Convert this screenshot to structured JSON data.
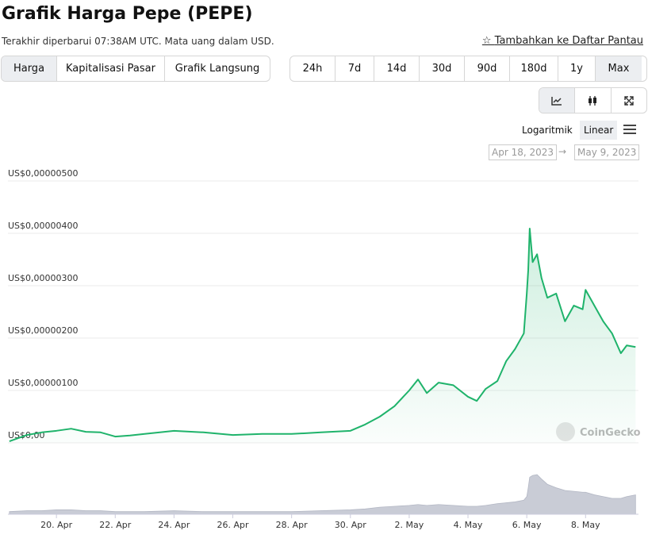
{
  "header": {
    "title": "Grafik Harga Pepe (PEPE)",
    "updated": "Terakhir diperbarui 07:38AM UTC. Mata uang dalam USD.",
    "watchlist": "Tambahkan ke Daftar Pantau"
  },
  "tabs": [
    "Harga",
    "Kapitalisasi Pasar",
    "Grafik Langsung"
  ],
  "ranges": [
    "24h",
    "7d",
    "14d",
    "30d",
    "90d",
    "180d",
    "1y",
    "Max"
  ],
  "scale_options": [
    "Logaritmik",
    "Linear"
  ],
  "date_range": [
    "Apr 18, 2023",
    "May 9, 2023"
  ],
  "chart_data": {
    "type": "line",
    "fill": true,
    "color": "#1fb36b",
    "grid": true,
    "watermark": "CoinGecko",
    "x": [
      0.4,
      1,
      1.5,
      2,
      2.5,
      3,
      3.5,
      4,
      4.5,
      5,
      6,
      7,
      8,
      9,
      10,
      11,
      12,
      12.5,
      13,
      13.5,
      14,
      14.3,
      14.6,
      15,
      15.5,
      16,
      16.3,
      16.6,
      17,
      17.3,
      17.6,
      17.9,
      18,
      18.05,
      18.1,
      18.2,
      18.35,
      18.5,
      18.7,
      19,
      19.3,
      19.6,
      19.9,
      20,
      20.3,
      20.6,
      20.9,
      21.2,
      21.4,
      21.7
    ],
    "values": [
      3e-08,
      1.5e-07,
      2e-07,
      2.3e-07,
      2.7e-07,
      2.1e-07,
      2e-07,
      1.2e-07,
      1.4e-07,
      1.7e-07,
      2.3e-07,
      2e-07,
      1.5e-07,
      1.7e-07,
      1.7e-07,
      2e-07,
      2.3e-07,
      3.5e-07,
      5e-07,
      7e-07,
      1e-06,
      1.21e-06,
      9.5e-07,
      1.15e-06,
      1.1e-06,
      8.8e-07,
      8e-07,
      1.03e-06,
      1.18e-06,
      1.56e-06,
      1.79e-06,
      2.09e-06,
      2.85e-06,
      3.3e-06,
      4.09e-06,
      3.45e-06,
      3.6e-06,
      3.15e-06,
      2.77e-06,
      2.85e-06,
      2.32e-06,
      2.62e-06,
      2.55e-06,
      2.92e-06,
      2.62e-06,
      2.32e-06,
      2.09e-06,
      1.71e-06,
      1.86e-06,
      1.83e-06
    ],
    "volume": [
      3,
      4,
      4,
      5,
      5,
      4,
      4,
      3,
      3,
      3,
      4,
      3,
      3,
      3,
      3,
      4,
      5,
      6,
      8,
      9,
      10,
      11,
      10,
      11,
      10,
      9,
      9,
      10,
      12,
      13,
      14,
      16,
      20,
      30,
      42,
      44,
      45,
      40,
      34,
      30,
      27,
      26,
      25,
      25,
      22,
      20,
      18,
      18,
      20,
      22
    ],
    "xlim": [
      0.35,
      21.8
    ],
    "ylim": [
      0,
      5e-06
    ],
    "xticks": [
      {
        "value": 2,
        "label": "20. Apr"
      },
      {
        "value": 4,
        "label": "22. Apr"
      },
      {
        "value": 6,
        "label": "24. Apr"
      },
      {
        "value": 8,
        "label": "26. Apr"
      },
      {
        "value": 10,
        "label": "28. Apr"
      },
      {
        "value": 12,
        "label": "30. Apr"
      },
      {
        "value": 14,
        "label": "2. May"
      },
      {
        "value": 16,
        "label": "4. May"
      },
      {
        "value": 18,
        "label": "6. May"
      },
      {
        "value": 20,
        "label": "8. May"
      }
    ],
    "yticks": [
      {
        "value": 0,
        "label": "US$0,00"
      },
      {
        "value": 1e-06,
        "label": "US$0,00000100"
      },
      {
        "value": 2e-06,
        "label": "US$0,00000200"
      },
      {
        "value": 3e-06,
        "label": "US$0,00000300"
      },
      {
        "value": 4e-06,
        "label": "US$0,00000400"
      },
      {
        "value": 5e-06,
        "label": "US$0,00000500"
      }
    ]
  }
}
